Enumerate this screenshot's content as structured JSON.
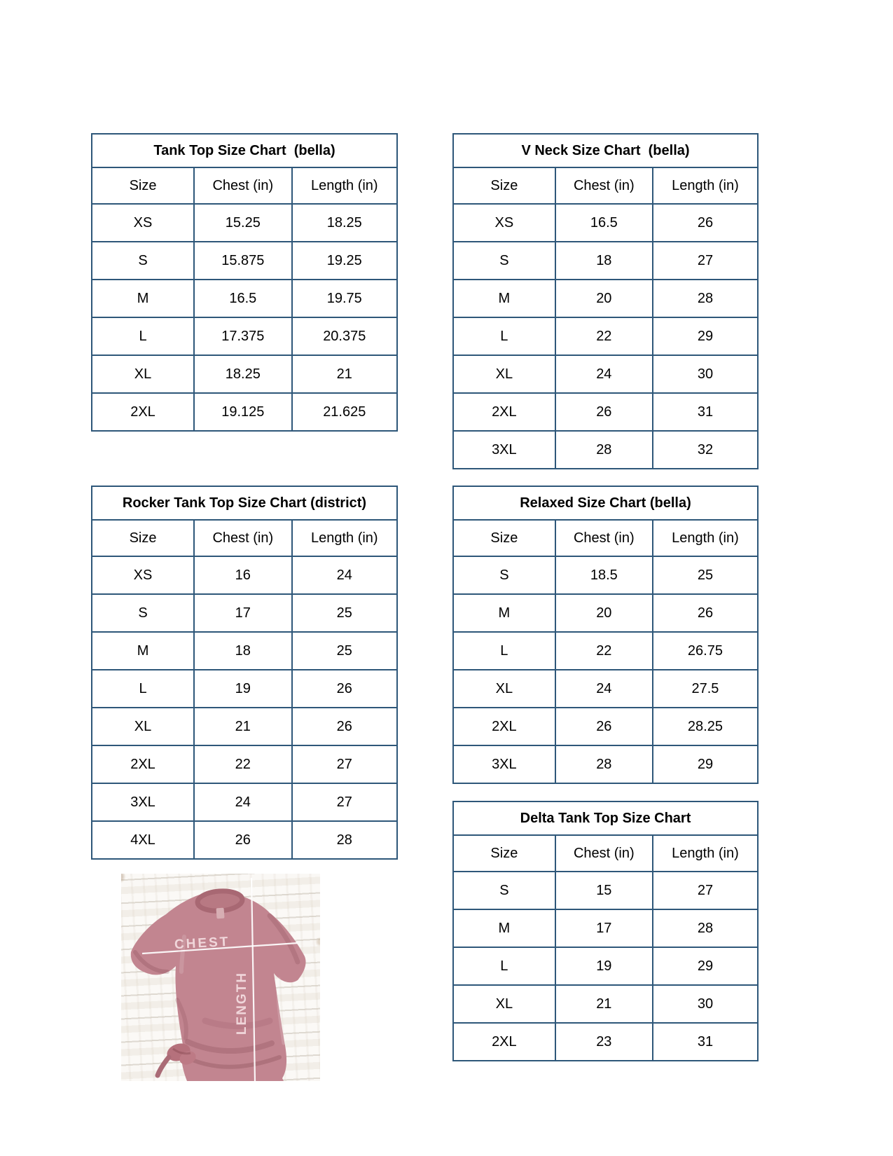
{
  "document": {
    "background": "#ffffff"
  },
  "styles": {
    "table_border_color": "#2e5779",
    "text_color": "#000000",
    "shirt_color": "#c28590",
    "shirt_shadow_color": "#a86873",
    "photo_line_color": "#ffffff",
    "photo_label_color": "#f0d6da"
  },
  "tables": [
    {
      "id": "tank-top",
      "title": "Tank Top Size Chart  (bella)",
      "headers": [
        "Size",
        "Chest (in)",
        "Length (in)"
      ],
      "rows": [
        [
          "XS",
          "15.25",
          "18.25"
        ],
        [
          "S",
          "15.875",
          "19.25"
        ],
        [
          "M",
          "16.5",
          "19.75"
        ],
        [
          "L",
          "17.375",
          "20.375"
        ],
        [
          "XL",
          "18.25",
          "21"
        ],
        [
          "2XL",
          "19.125",
          "21.625"
        ]
      ]
    },
    {
      "id": "v-neck",
      "title": "V Neck Size Chart  (bella)",
      "headers": [
        "Size",
        "Chest (in)",
        "Length (in)"
      ],
      "rows": [
        [
          "XS",
          "16.5",
          "26"
        ],
        [
          "S",
          "18",
          "27"
        ],
        [
          "M",
          "20",
          "28"
        ],
        [
          "L",
          "22",
          "29"
        ],
        [
          "XL",
          "24",
          "30"
        ],
        [
          "2XL",
          "26",
          "31"
        ],
        [
          "3XL",
          "28",
          "32"
        ]
      ]
    },
    {
      "id": "rocker-tank-top",
      "title": "Rocker Tank Top Size Chart (district)",
      "headers": [
        "Size",
        "Chest (in)",
        "Length (in)"
      ],
      "rows": [
        [
          "XS",
          "16",
          "24"
        ],
        [
          "S",
          "17",
          "25"
        ],
        [
          "M",
          "18",
          "25"
        ],
        [
          "L",
          "19",
          "26"
        ],
        [
          "XL",
          "21",
          "26"
        ],
        [
          "2XL",
          "22",
          "27"
        ],
        [
          "3XL",
          "24",
          "27"
        ],
        [
          "4XL",
          "26",
          "28"
        ]
      ]
    },
    {
      "id": "relaxed",
      "title": "Relaxed Size Chart (bella)",
      "headers": [
        "Size",
        "Chest (in)",
        "Length (in)"
      ],
      "rows": [
        [
          "S",
          "18.5",
          "25"
        ],
        [
          "M",
          "20",
          "26"
        ],
        [
          "L",
          "22",
          "26.75"
        ],
        [
          "XL",
          "24",
          "27.5"
        ],
        [
          "2XL",
          "26",
          "28.25"
        ],
        [
          "3XL",
          "28",
          "29"
        ]
      ]
    },
    {
      "id": "delta-tank-top",
      "title": "Delta Tank Top Size Chart",
      "headers": [
        "Size",
        "Chest (in)",
        "Length (in)"
      ],
      "rows": [
        [
          "S",
          "15",
          "27"
        ],
        [
          "M",
          "17",
          "28"
        ],
        [
          "L",
          "19",
          "29"
        ],
        [
          "XL",
          "21",
          "30"
        ],
        [
          "2XL",
          "23",
          "31"
        ]
      ]
    }
  ],
  "photo": {
    "chest_label": "CHEST",
    "length_label": "LENGTH"
  }
}
